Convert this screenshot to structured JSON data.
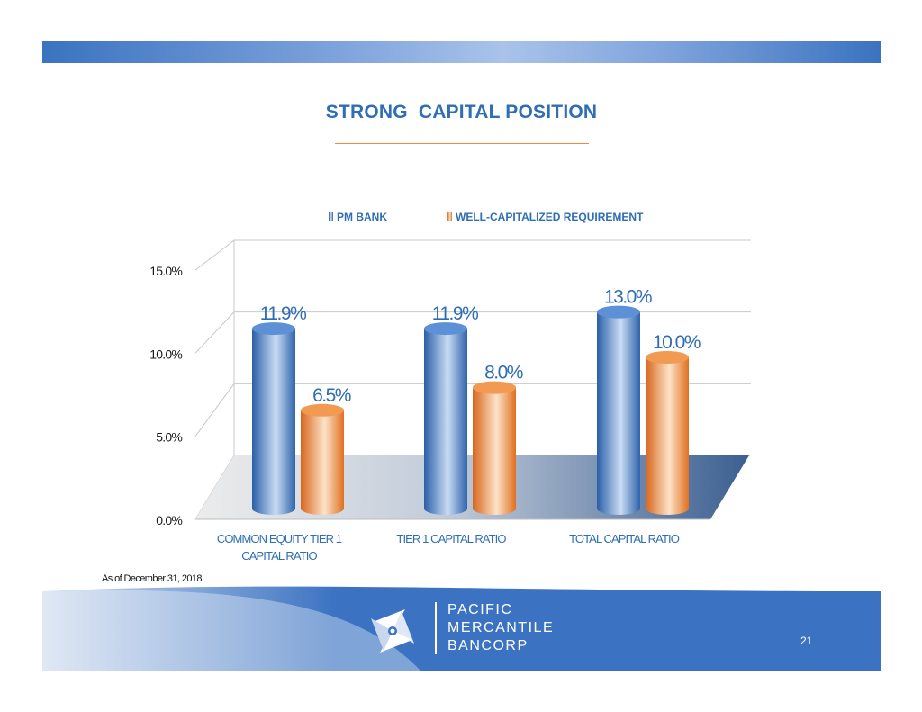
{
  "slide": {
    "title": "STRONG  CAPITAL POSITION",
    "footnote": "As of December 31, 2018",
    "page_number": "21"
  },
  "logo": {
    "lines": [
      "PACIFIC",
      "MERCANTILE",
      "BANCORP"
    ],
    "icon": "pinwheel-logo-icon"
  },
  "colors": {
    "accent_blue": "#2f6eb5",
    "series_blue": "#4f86cf",
    "series_orange": "#f08a3a",
    "footer_blue": "#3b73c2",
    "rule_orange": "#ef8a3c"
  },
  "chart_data": {
    "type": "bar",
    "style": "3d-cylinder",
    "categories": [
      "COMMON EQUITY TIER 1 CAPITAL RATIO",
      "TIER 1 CAPITAL RATIO",
      "TOTAL CAPITAL RATIO"
    ],
    "category_lines": [
      [
        "COMMON EQUITY TIER 1",
        "CAPITAL RATIO"
      ],
      [
        "TIER 1 CAPITAL RATIO"
      ],
      [
        "TOTAL CAPITAL RATIO"
      ]
    ],
    "series": [
      {
        "name": "PM BANK",
        "values": [
          11.9,
          11.9,
          13.0
        ],
        "labels": [
          "11.9%",
          "11.9%",
          "13.0%"
        ],
        "color": "#4f86cf"
      },
      {
        "name": "WELL-CAPITALIZED  REQUIREMENT",
        "values": [
          6.5,
          8.0,
          10.0
        ],
        "labels": [
          "6.5%",
          "8.0%",
          "10.0%"
        ],
        "color": "#f08a3a"
      }
    ],
    "yticks": [
      0,
      5,
      10,
      15
    ],
    "ytick_labels": [
      "0.0%",
      "5.0%",
      "10.0%",
      "15.0%"
    ],
    "ylim": [
      0,
      15
    ],
    "grid": true,
    "legend": "top"
  }
}
